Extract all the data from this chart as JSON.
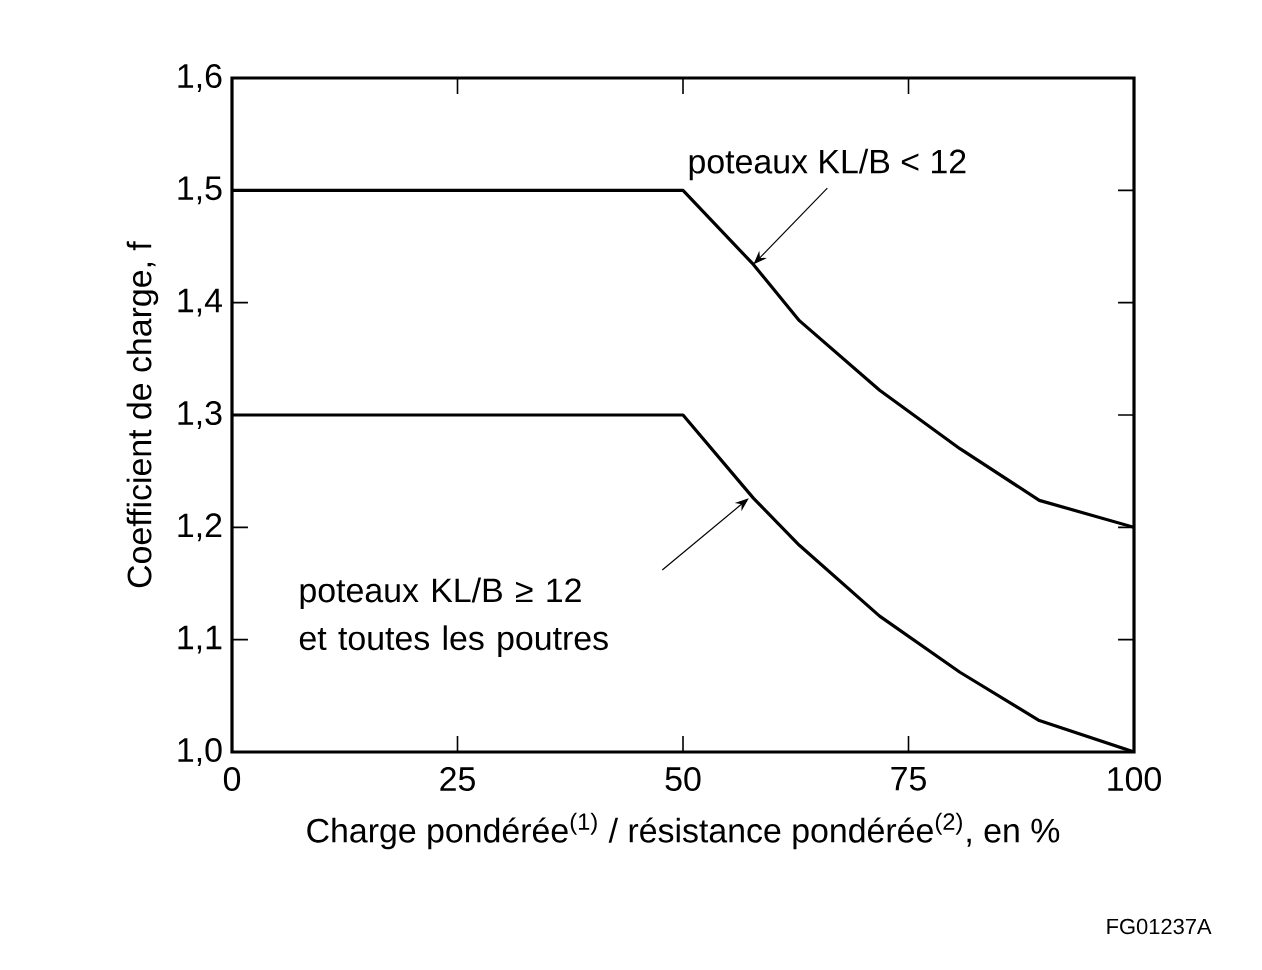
{
  "chart_data": {
    "type": "line",
    "xlabel": "Charge pondérée$^{(1)}$ / résistance pondérée$^{(2)}$, en %",
    "ylabel": "Coefficient de charge, f",
    "x": [
      0,
      50,
      57.8,
      62.9,
      71.8,
      80.7,
      89.5,
      100
    ],
    "series": [
      {
        "color": "#000000",
        "values": [
          1.5,
          1.5,
          1.434,
          1.384,
          1.322,
          1.27,
          1.224,
          1.2
        ]
      },
      {
        "color": "#000000",
        "values": [
          1.3,
          1.3,
          1.226,
          1.184,
          1.121,
          1.071,
          1.028,
          1.0
        ]
      }
    ],
    "xlim": [
      0,
      100
    ],
    "xticks": [
      0,
      25,
      50,
      75,
      100
    ],
    "ylim": [
      1.0,
      1.6
    ],
    "yticks": [
      {
        "value": 1.0,
        "label": "1,0"
      },
      {
        "value": 1.1,
        "label": "1,1"
      },
      {
        "value": 1.2,
        "label": "1,2"
      },
      {
        "value": 1.3,
        "label": "1,3"
      },
      {
        "value": 1.4,
        "label": "1,4"
      },
      {
        "value": 1.5,
        "label": "1,5"
      },
      {
        "value": 1.6,
        "label": "1,6"
      }
    ],
    "grid": false,
    "marker": "none",
    "line_style": "solid",
    "annotations": [
      {
        "text": "poteaux KL/B < 12",
        "x": 57.8,
        "y": 1.434
      },
      "poteaux KL/B ≥ 12 et toutes les poutres",
      "FG01237A"
    ]
  }
}
